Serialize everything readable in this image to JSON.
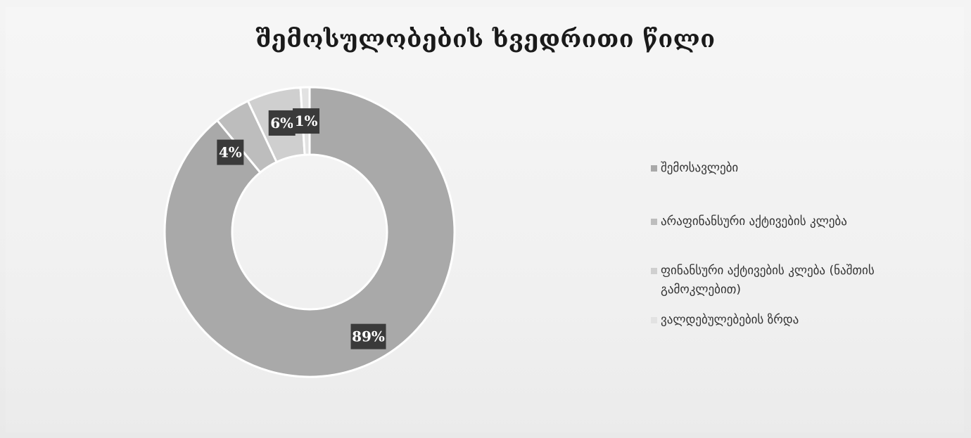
{
  "chart_data": {
    "type": "pie",
    "title": "შემოსულობების ხვედრითი წილი",
    "categories": [
      "შემოსავლები",
      "არაფინანსური აქტივების კლება",
      "ფინანსური აქტივების კლება (ნაშთის გამოკლებით)",
      "ვალდებულებების ზრდა"
    ],
    "values": [
      89,
      4,
      6,
      1
    ],
    "data_labels": [
      "89%",
      "4%",
      "6%",
      "1%"
    ],
    "colors": [
      "#a9a9a9",
      "#bdbdbd",
      "#cfcfcf",
      "#e2e2e2"
    ],
    "donut": true,
    "legend_position": "right"
  }
}
